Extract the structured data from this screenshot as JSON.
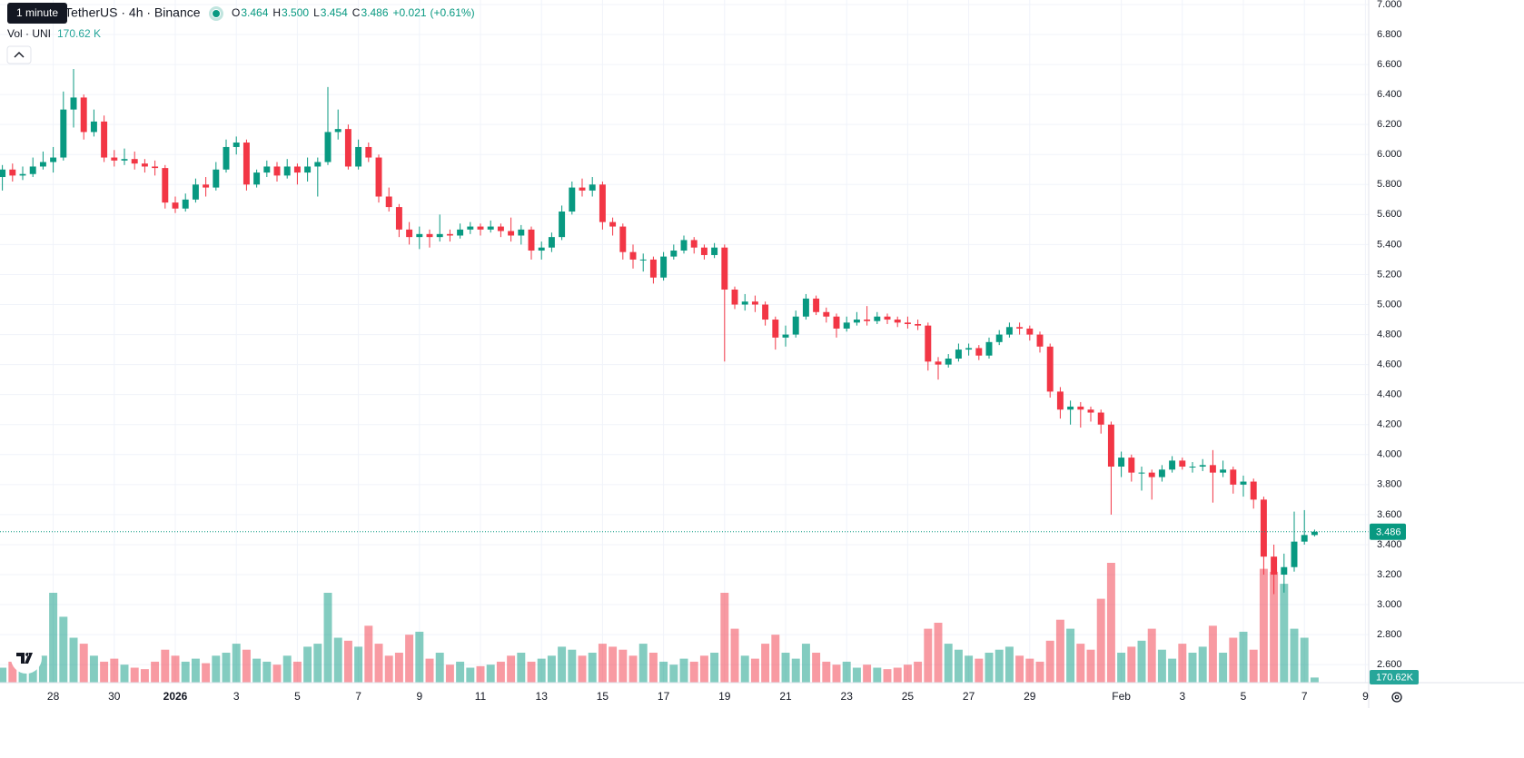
{
  "chart_data": {
    "type": "candlestick",
    "title": "UNITetherUS · 4h · Binance",
    "tooltip": "1 minute",
    "legend": {
      "letters": [
        "O",
        "H",
        "L",
        "C"
      ],
      "values": [
        3.464,
        {
          "value": 3.5,
          "label": "3.500"
        },
        3.454,
        3.486
      ],
      "change": {
        "value": 0.021,
        "label": "+0.021"
      },
      "change_pct": {
        "value": 0.61,
        "label": "(+0.61%)"
      }
    },
    "volume_title": "Vol · UNI",
    "volume_last": {
      "value": 170.62,
      "label": "170.62 K"
    },
    "volume_badge": {
      "value": 170.62,
      "label": "170.62K"
    },
    "up_color": "#089981",
    "down_color": "#f23645",
    "grid": true,
    "xlim": [
      "2025-12-26T06:08",
      "2026-02-09T02:34"
    ],
    "xticks": [
      {
        "value": "2025-12-28",
        "label": "28"
      },
      {
        "value": "2025-12-30",
        "label": "30"
      },
      {
        "value": "2026-01-01",
        "label": "2026"
      },
      {
        "value": "2026-01-03",
        "label": "3"
      },
      {
        "value": "2026-01-05",
        "label": "5"
      },
      {
        "value": "2026-01-07",
        "label": "7"
      },
      {
        "value": "2026-01-09",
        "label": "9"
      },
      {
        "value": "2026-01-11",
        "label": "11"
      },
      {
        "value": "2026-01-13",
        "label": "13"
      },
      {
        "value": "2026-01-15",
        "label": "15"
      },
      {
        "value": "2026-01-17",
        "label": "17"
      },
      {
        "value": "2026-01-19",
        "label": "19"
      },
      {
        "value": "2026-01-21",
        "label": "21"
      },
      {
        "value": "2026-01-23",
        "label": "23"
      },
      {
        "value": "2026-01-25",
        "label": "25"
      },
      {
        "value": "2026-01-27",
        "label": "27"
      },
      {
        "value": "2026-01-29",
        "label": "29"
      },
      {
        "value": "2026-02-01",
        "label": "Feb"
      },
      {
        "value": "2026-02-03",
        "label": "3"
      },
      {
        "value": "2026-02-05",
        "label": "5"
      },
      {
        "value": "2026-02-07",
        "label": "7"
      },
      {
        "value": "2026-02-09",
        "label": "9"
      }
    ],
    "ylim": [
      2.48,
      7.03
    ],
    "yticks": [
      {
        "value": 2.6,
        "label": "2.600"
      },
      {
        "value": 2.8,
        "label": "2.800"
      },
      {
        "value": 3,
        "label": "3.000"
      },
      {
        "value": 3.2,
        "label": "3.200"
      },
      {
        "value": 3.4,
        "label": "3.400"
      },
      {
        "value": 3.6,
        "label": "3.600"
      },
      {
        "value": 3.8,
        "label": "3.800"
      },
      {
        "value": 4,
        "label": "4.000"
      },
      {
        "value": 4.2,
        "label": "4.200"
      },
      {
        "value": 4.4,
        "label": "4.400"
      },
      {
        "value": 4.6,
        "label": "4.600"
      },
      {
        "value": 4.8,
        "label": "4.800"
      },
      {
        "value": 5,
        "label": "5.000"
      },
      {
        "value": 5.2,
        "label": "5.200"
      },
      {
        "value": 5.4,
        "label": "5.400"
      },
      {
        "value": 5.6,
        "label": "5.600"
      },
      {
        "value": 5.8,
        "label": "5.800"
      },
      {
        "value": 6,
        "label": "6.000"
      },
      {
        "value": 6.2,
        "label": "6.200"
      },
      {
        "value": 6.4,
        "label": "6.400"
      },
      {
        "value": 6.6,
        "label": "6.600"
      },
      {
        "value": 6.8,
        "label": "6.800"
      },
      {
        "value": 7,
        "label": "7.000"
      }
    ],
    "x": [
      "2025-12-26T08:00",
      "2025-12-26T16:00",
      "2025-12-27T00:00",
      "2025-12-27T08:00",
      "2025-12-27T16:00",
      "2025-12-28T00:00",
      "2025-12-28T08:00",
      "2025-12-28T16:00",
      "2025-12-29T00:00",
      "2025-12-29T08:00",
      "2025-12-29T16:00",
      "2025-12-30T00:00",
      "2025-12-30T08:00",
      "2025-12-30T16:00",
      "2025-12-31T00:00",
      "2025-12-31T08:00",
      "2025-12-31T16:00",
      "2026-01-01T00:00",
      "2026-01-01T08:00",
      "2026-01-01T16:00",
      "2026-01-02T00:00",
      "2026-01-02T08:00",
      "2026-01-02T16:00",
      "2026-01-03T00:00",
      "2026-01-03T08:00",
      "2026-01-03T16:00",
      "2026-01-04T00:00",
      "2026-01-04T08:00",
      "2026-01-04T16:00",
      "2026-01-05T00:00",
      "2026-01-05T08:00",
      "2026-01-05T16:00",
      "2026-01-06T00:00",
      "2026-01-06T08:00",
      "2026-01-06T16:00",
      "2026-01-07T00:00",
      "2026-01-07T08:00",
      "2026-01-07T16:00",
      "2026-01-08T00:00",
      "2026-01-08T08:00",
      "2026-01-08T16:00",
      "2026-01-09T00:00",
      "2026-01-09T08:00",
      "2026-01-09T16:00",
      "2026-01-10T00:00",
      "2026-01-10T08:00",
      "2026-01-10T16:00",
      "2026-01-11T00:00",
      "2026-01-11T08:00",
      "2026-01-11T16:00",
      "2026-01-12T00:00",
      "2026-01-12T08:00",
      "2026-01-12T16:00",
      "2026-01-13T00:00",
      "2026-01-13T08:00",
      "2026-01-13T16:00",
      "2026-01-14T00:00",
      "2026-01-14T08:00",
      "2026-01-14T16:00",
      "2026-01-15T00:00",
      "2026-01-15T08:00",
      "2026-01-15T16:00",
      "2026-01-16T00:00",
      "2026-01-16T08:00",
      "2026-01-16T16:00",
      "2026-01-17T00:00",
      "2026-01-17T08:00",
      "2026-01-17T16:00",
      "2026-01-18T00:00",
      "2026-01-18T08:00",
      "2026-01-18T16:00",
      "2026-01-19T00:00",
      "2026-01-19T08:00",
      "2026-01-19T16:00",
      "2026-01-20T00:00",
      "2026-01-20T08:00",
      "2026-01-20T16:00",
      "2026-01-21T00:00",
      "2026-01-21T08:00",
      "2026-01-21T16:00",
      "2026-01-22T00:00",
      "2026-01-22T08:00",
      "2026-01-22T16:00",
      "2026-01-23T00:00",
      "2026-01-23T08:00",
      "2026-01-23T16:00",
      "2026-01-24T00:00",
      "2026-01-24T08:00",
      "2026-01-24T16:00",
      "2026-01-25T00:00",
      "2026-01-25T08:00",
      "2026-01-25T16:00",
      "2026-01-26T00:00",
      "2026-01-26T08:00",
      "2026-01-26T16:00",
      "2026-01-27T00:00",
      "2026-01-27T08:00",
      "2026-01-27T16:00",
      "2026-01-28T00:00",
      "2026-01-28T08:00",
      "2026-01-28T16:00",
      "2026-01-29T00:00",
      "2026-01-29T08:00",
      "2026-01-29T16:00",
      "2026-01-30T00:00",
      "2026-01-30T08:00",
      "2026-01-30T16:00",
      "2026-01-31T00:00",
      "2026-01-31T08:00",
      "2026-01-31T16:00",
      "2026-02-01T00:00",
      "2026-02-01T08:00",
      "2026-02-01T16:00",
      "2026-02-02T00:00",
      "2026-02-02T08:00",
      "2026-02-02T16:00",
      "2026-02-03T00:00",
      "2026-02-03T08:00",
      "2026-02-03T16:00",
      "2026-02-04T00:00",
      "2026-02-04T08:00",
      "2026-02-04T16:00",
      "2026-02-05T00:00",
      "2026-02-05T08:00",
      "2026-02-05T16:00",
      "2026-02-06T00:00",
      "2026-02-06T08:00",
      "2026-02-06T16:00",
      "2026-02-07T00:00",
      "2026-02-07T08:00"
    ],
    "ohlc": [
      [
        5.85,
        5.93,
        5.76,
        5.9
      ],
      [
        5.9,
        5.94,
        5.82,
        5.86
      ],
      [
        5.86,
        5.92,
        5.83,
        5.87
      ],
      [
        5.87,
        5.98,
        5.85,
        5.92
      ],
      [
        5.92,
        6.02,
        5.9,
        5.95
      ],
      [
        5.95,
        6.05,
        5.88,
        5.98
      ],
      [
        5.98,
        6.42,
        5.96,
        6.3
      ],
      [
        6.3,
        6.57,
        6.18,
        6.38
      ],
      [
        6.38,
        6.4,
        6.1,
        6.15
      ],
      [
        6.15,
        6.3,
        6.12,
        6.22
      ],
      [
        6.22,
        6.26,
        5.95,
        5.98
      ],
      [
        5.98,
        6.03,
        5.92,
        5.96
      ],
      [
        5.96,
        6.04,
        5.93,
        5.97
      ],
      [
        5.97,
        6.02,
        5.9,
        5.94
      ],
      [
        5.94,
        5.97,
        5.88,
        5.92
      ],
      [
        5.92,
        5.96,
        5.86,
        5.91
      ],
      [
        5.91,
        5.93,
        5.64,
        5.68
      ],
      [
        5.68,
        5.72,
        5.61,
        5.64
      ],
      [
        5.64,
        5.74,
        5.62,
        5.7
      ],
      [
        5.7,
        5.84,
        5.68,
        5.8
      ],
      [
        5.8,
        5.85,
        5.72,
        5.78
      ],
      [
        5.78,
        5.95,
        5.76,
        5.9
      ],
      [
        5.9,
        6.1,
        5.88,
        6.05
      ],
      [
        6.05,
        6.12,
        6.0,
        6.08
      ],
      [
        6.08,
        6.1,
        5.76,
        5.8
      ],
      [
        5.8,
        5.9,
        5.78,
        5.88
      ],
      [
        5.88,
        5.96,
        5.85,
        5.92
      ],
      [
        5.92,
        5.95,
        5.82,
        5.86
      ],
      [
        5.86,
        5.97,
        5.84,
        5.92
      ],
      [
        5.92,
        5.94,
        5.8,
        5.88
      ],
      [
        5.88,
        5.98,
        5.82,
        5.92
      ],
      [
        5.92,
        5.98,
        5.72,
        5.95
      ],
      [
        5.95,
        6.45,
        5.93,
        6.15
      ],
      [
        6.15,
        6.3,
        6.1,
        6.17
      ],
      [
        6.17,
        6.2,
        5.9,
        5.92
      ],
      [
        5.92,
        6.1,
        5.9,
        6.05
      ],
      [
        6.05,
        6.08,
        5.95,
        5.98
      ],
      [
        5.98,
        6.0,
        5.68,
        5.72
      ],
      [
        5.72,
        5.78,
        5.62,
        5.65
      ],
      [
        5.65,
        5.67,
        5.45,
        5.5
      ],
      [
        5.5,
        5.55,
        5.4,
        5.45
      ],
      [
        5.45,
        5.52,
        5.37,
        5.47
      ],
      [
        5.47,
        5.5,
        5.38,
        5.45
      ],
      [
        5.45,
        5.6,
        5.42,
        5.47
      ],
      [
        5.47,
        5.5,
        5.42,
        5.46
      ],
      [
        5.46,
        5.54,
        5.44,
        5.5
      ],
      [
        5.5,
        5.55,
        5.47,
        5.52
      ],
      [
        5.52,
        5.54,
        5.46,
        5.5
      ],
      [
        5.5,
        5.56,
        5.48,
        5.52
      ],
      [
        5.52,
        5.54,
        5.45,
        5.49
      ],
      [
        5.49,
        5.58,
        5.42,
        5.46
      ],
      [
        5.46,
        5.53,
        5.4,
        5.5
      ],
      [
        5.5,
        5.52,
        5.3,
        5.36
      ],
      [
        5.36,
        5.42,
        5.3,
        5.38
      ],
      [
        5.38,
        5.48,
        5.35,
        5.45
      ],
      [
        5.45,
        5.66,
        5.43,
        5.62
      ],
      [
        5.62,
        5.82,
        5.6,
        5.78
      ],
      [
        5.78,
        5.84,
        5.72,
        5.76
      ],
      [
        5.76,
        5.85,
        5.72,
        5.8
      ],
      [
        5.8,
        5.82,
        5.5,
        5.55
      ],
      [
        5.55,
        5.58,
        5.46,
        5.52
      ],
      [
        5.52,
        5.54,
        5.3,
        5.35
      ],
      [
        5.35,
        5.4,
        5.24,
        5.3
      ],
      [
        5.3,
        5.34,
        5.22,
        5.3
      ],
      [
        5.3,
        5.32,
        5.14,
        5.18
      ],
      [
        5.18,
        5.35,
        5.16,
        5.32
      ],
      [
        5.32,
        5.4,
        5.3,
        5.36
      ],
      [
        5.36,
        5.46,
        5.34,
        5.43
      ],
      [
        5.43,
        5.45,
        5.34,
        5.38
      ],
      [
        5.38,
        5.4,
        5.3,
        5.33
      ],
      [
        5.33,
        5.41,
        5.31,
        5.38
      ],
      [
        5.38,
        5.4,
        4.62,
        5.1
      ],
      [
        5.1,
        5.12,
        4.97,
        5.0
      ],
      [
        5.0,
        5.07,
        4.96,
        5.02
      ],
      [
        5.02,
        5.06,
        4.95,
        5.0
      ],
      [
        5.0,
        5.02,
        4.86,
        4.9
      ],
      [
        4.9,
        4.92,
        4.7,
        4.78
      ],
      [
        4.78,
        4.86,
        4.72,
        4.8
      ],
      [
        4.8,
        4.96,
        4.78,
        4.92
      ],
      [
        4.92,
        5.07,
        4.9,
        5.04
      ],
      [
        5.04,
        5.06,
        4.93,
        4.95
      ],
      [
        4.95,
        4.98,
        4.88,
        4.92
      ],
      [
        4.92,
        4.94,
        4.78,
        4.84
      ],
      [
        4.84,
        4.92,
        4.82,
        4.88
      ],
      [
        4.88,
        4.95,
        4.86,
        4.9
      ],
      [
        4.9,
        4.99,
        4.86,
        4.89
      ],
      [
        4.89,
        4.95,
        4.87,
        4.92
      ],
      [
        4.92,
        4.94,
        4.87,
        4.9
      ],
      [
        4.9,
        4.92,
        4.85,
        4.88
      ],
      [
        4.88,
        4.92,
        4.84,
        4.87
      ],
      [
        4.87,
        4.9,
        4.83,
        4.86
      ],
      [
        4.86,
        4.88,
        4.56,
        4.62
      ],
      [
        4.62,
        4.65,
        4.5,
        4.6
      ],
      [
        4.6,
        4.67,
        4.58,
        4.64
      ],
      [
        4.64,
        4.74,
        4.62,
        4.7
      ],
      [
        4.7,
        4.74,
        4.66,
        4.71
      ],
      [
        4.71,
        4.73,
        4.63,
        4.66
      ],
      [
        4.66,
        4.78,
        4.64,
        4.75
      ],
      [
        4.75,
        4.83,
        4.73,
        4.8
      ],
      [
        4.8,
        4.88,
        4.78,
        4.85
      ],
      [
        4.85,
        4.88,
        4.8,
        4.84
      ],
      [
        4.84,
        4.86,
        4.76,
        4.8
      ],
      [
        4.8,
        4.82,
        4.68,
        4.72
      ],
      [
        4.72,
        4.74,
        4.38,
        4.42
      ],
      [
        4.42,
        4.45,
        4.24,
        4.3
      ],
      [
        4.3,
        4.36,
        4.2,
        4.32
      ],
      [
        4.32,
        4.35,
        4.18,
        4.3
      ],
      [
        4.3,
        4.32,
        4.22,
        4.28
      ],
      [
        4.28,
        4.3,
        4.14,
        4.2
      ],
      [
        4.2,
        4.22,
        3.6,
        3.92
      ],
      [
        3.92,
        4.02,
        3.85,
        3.98
      ],
      [
        3.98,
        4.0,
        3.82,
        3.88
      ],
      [
        3.88,
        3.92,
        3.76,
        3.88
      ],
      [
        3.88,
        3.9,
        3.7,
        3.85
      ],
      [
        3.85,
        3.93,
        3.82,
        3.9
      ],
      [
        3.9,
        3.99,
        3.88,
        3.96
      ],
      [
        3.96,
        3.98,
        3.9,
        3.92
      ],
      [
        3.92,
        3.95,
        3.88,
        3.92
      ],
      [
        3.92,
        3.97,
        3.89,
        3.93
      ],
      [
        3.93,
        4.03,
        3.68,
        3.88
      ],
      [
        3.88,
        3.96,
        3.85,
        3.9
      ],
      [
        3.9,
        3.92,
        3.74,
        3.8
      ],
      [
        3.8,
        3.86,
        3.72,
        3.82
      ],
      [
        3.82,
        3.84,
        3.64,
        3.7
      ],
      [
        3.7,
        3.72,
        3.2,
        3.32
      ],
      [
        3.32,
        3.4,
        3.07,
        3.2
      ],
      [
        3.2,
        3.34,
        3.08,
        3.25
      ],
      [
        3.25,
        3.62,
        3.22,
        3.42
      ],
      [
        3.42,
        3.63,
        3.4,
        3.464
      ],
      [
        3.464,
        3.5,
        3.454,
        3.486
      ]
    ],
    "volume": [
      500,
      700,
      600,
      650,
      900,
      3000,
      2200,
      1500,
      1300,
      900,
      700,
      800,
      600,
      500,
      450,
      700,
      1100,
      900,
      700,
      800,
      650,
      900,
      1000,
      1300,
      1100,
      800,
      700,
      600,
      900,
      700,
      1200,
      1300,
      3000,
      1500,
      1400,
      1200,
      1900,
      1300,
      900,
      1000,
      1600,
      1700,
      800,
      1000,
      600,
      700,
      500,
      550,
      600,
      700,
      900,
      1000,
      700,
      800,
      900,
      1200,
      1100,
      900,
      1000,
      1300,
      1200,
      1100,
      900,
      1300,
      1000,
      700,
      600,
      800,
      700,
      900,
      1000,
      3000,
      1800,
      900,
      800,
      1300,
      1600,
      1000,
      800,
      1300,
      1000,
      700,
      600,
      700,
      500,
      600,
      500,
      450,
      500,
      600,
      700,
      1800,
      2000,
      1300,
      1100,
      900,
      800,
      1000,
      1100,
      1200,
      900,
      800,
      700,
      1400,
      2100,
      1800,
      1300,
      1100,
      2800,
      4000,
      1000,
      1200,
      1400,
      1800,
      1100,
      800,
      1300,
      1000,
      1200,
      1900,
      1000,
      1500,
      1700,
      1100,
      3800,
      3700,
      3300,
      1800,
      1500,
      170.62
    ]
  }
}
